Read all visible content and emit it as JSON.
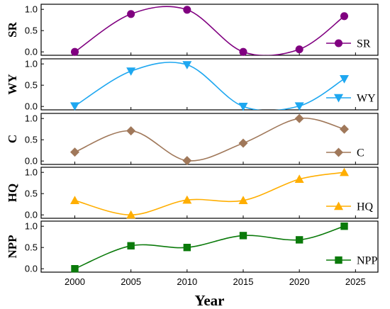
{
  "chart_data": {
    "type": "line",
    "xlabel": "Year",
    "x": [
      2000,
      2005,
      2010,
      2015,
      2020,
      2024
    ],
    "xlim": [
      1997,
      2027
    ],
    "xticks": [
      2000,
      2005,
      2010,
      2015,
      2020,
      2025
    ],
    "ylim": [
      -0.08,
      1.12
    ],
    "yticks": [
      0.0,
      0.5,
      1.0
    ],
    "ytick_labels": [
      "0.0",
      "0.5",
      "1.0"
    ],
    "grid": false,
    "legend_position": "bottom-right of each panel",
    "smoothed": true,
    "series": [
      {
        "name": "SR",
        "ylabel": "SR",
        "marker": "circle",
        "color": "#800080",
        "values": [
          0.0,
          0.89,
          0.99,
          0.0,
          0.06,
          0.84
        ]
      },
      {
        "name": "WY",
        "ylabel": "WY",
        "marker": "triangle-down",
        "color": "#1EA7F0",
        "values": [
          0.01,
          0.83,
          0.98,
          0.0,
          0.01,
          0.65
        ]
      },
      {
        "name": "C",
        "ylabel": "C",
        "marker": "diamond",
        "color": "#A0785A",
        "values": [
          0.21,
          0.71,
          0.01,
          0.42,
          1.0,
          0.75
        ]
      },
      {
        "name": "HQ",
        "ylabel": "HQ",
        "marker": "triangle-up",
        "color": "#FFAE00",
        "values": [
          0.34,
          0.0,
          0.35,
          0.34,
          0.84,
          1.0
        ]
      },
      {
        "name": "NPP",
        "ylabel": "NPP",
        "marker": "square",
        "color": "#0A7A0A",
        "values": [
          0.0,
          0.54,
          0.5,
          0.78,
          0.68,
          1.0
        ]
      }
    ]
  }
}
